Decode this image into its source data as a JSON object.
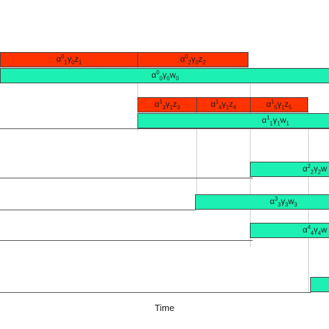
{
  "axis": {
    "label": "Time"
  },
  "colors": {
    "red_bar": "#ff3300",
    "green_bar": "#1cf0b2",
    "track_line": "#555555",
    "guide_line": "#cfcfcf"
  },
  "bars": {
    "r1": {
      "greek": "α",
      "sup": "0",
      "sub1": "1",
      "mid": "γ",
      "sub2": "0",
      "end": "z",
      "sub3": "1"
    },
    "r2": {
      "greek": "α",
      "sup": "0",
      "sub1": "2",
      "mid": "γ",
      "sub2": "0",
      "end": "z",
      "sub3": "2"
    },
    "g0": {
      "greek": "α",
      "sup": "0",
      "sub1": "0",
      "mid": "γ",
      "sub2": "0",
      "end": "w",
      "sub3": "0"
    },
    "r3": {
      "greek": "α",
      "sup": "1",
      "sub1": "3",
      "mid": "γ",
      "sub2": "1",
      "end": "z",
      "sub3": "3"
    },
    "r4": {
      "greek": "α",
      "sup": "1",
      "sub1": "4",
      "mid": "γ",
      "sub2": "1",
      "end": "z",
      "sub3": "4"
    },
    "r5": {
      "greek": "α",
      "sup": "1",
      "sub1": "5",
      "mid": "γ",
      "sub2": "1",
      "end": "z",
      "sub3": "5"
    },
    "g1": {
      "greek": "α",
      "sup": "1",
      "sub1": "1",
      "mid": "γ",
      "sub2": "1",
      "end": "w",
      "sub3": "1"
    },
    "g2": {
      "greek": "α",
      "sup": "2",
      "sub1": "2",
      "mid": "γ",
      "sub2": "2",
      "end": "w",
      "sub3": ""
    },
    "g3": {
      "greek": "α",
      "sup": "3",
      "sub1": "3",
      "mid": "γ",
      "sub2": "3",
      "end": "w",
      "sub3": "3"
    },
    "g4": {
      "greek": "α",
      "sup": "4",
      "sub1": "4",
      "mid": "γ",
      "sub2": "4",
      "end": "w",
      "sub3": ""
    }
  }
}
